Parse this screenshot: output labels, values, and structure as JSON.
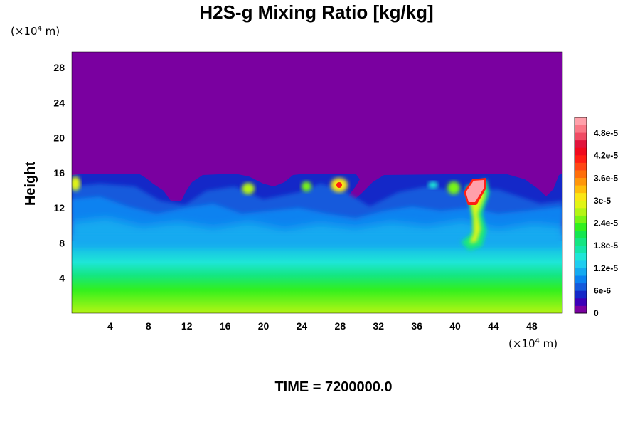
{
  "chart_data": {
    "type": "heatmap",
    "title": "H2S-g Mixing Ratio [kg/kg]",
    "ylabel": "Height",
    "y_unit_prefix": "(×10",
    "y_unit_exp": "4",
    "y_unit_suffix": " m)",
    "x_unit_prefix": "(×10",
    "x_unit_exp": "4",
    "x_unit_suffix": " m)",
    "x_ticks": [
      "4",
      "8",
      "12",
      "16",
      "20",
      "24",
      "28",
      "32",
      "36",
      "40",
      "44",
      "48"
    ],
    "x_tick_values": [
      4,
      8,
      12,
      16,
      20,
      24,
      28,
      32,
      36,
      40,
      44,
      48
    ],
    "y_ticks": [
      "4",
      "8",
      "12",
      "16",
      "20",
      "24",
      "28"
    ],
    "y_tick_values": [
      4,
      8,
      12,
      16,
      20,
      24,
      28
    ],
    "xlim": [
      0,
      51.2
    ],
    "ylim": [
      0,
      29.8
    ],
    "colorbar": {
      "labels": [
        "0",
        "6e-6",
        "1.2e-5",
        "1.8e-5",
        "2.4e-5",
        "3e-5",
        "3.6e-5",
        "4.2e-5",
        "4.8e-5"
      ],
      "label_values": [
        0,
        6e-06,
        1.2e-05,
        1.8e-05,
        2.4e-05,
        3e-05,
        3.6e-05,
        4.2e-05,
        4.8e-05
      ],
      "range": [
        0,
        5.22e-05
      ],
      "levels": 26,
      "colors": [
        "#7a00a0",
        "#3c00b8",
        "#1428c8",
        "#145adc",
        "#0a82f0",
        "#14aaf0",
        "#1ecdf0",
        "#1ee6d7",
        "#14e6aa",
        "#14e682",
        "#14e650",
        "#32f01e",
        "#78f514",
        "#b4f514",
        "#e1f514",
        "#fae614",
        "#ffbe0a",
        "#ff960a",
        "#ff6e0a",
        "#ff4614",
        "#ff1e14",
        "#f00a1e",
        "#e1143c",
        "#f04b64",
        "#fa7887",
        "#ffa0aa"
      ]
    },
    "background_color": "#7a00a0",
    "time_label": "TIME = 7200000.0"
  }
}
